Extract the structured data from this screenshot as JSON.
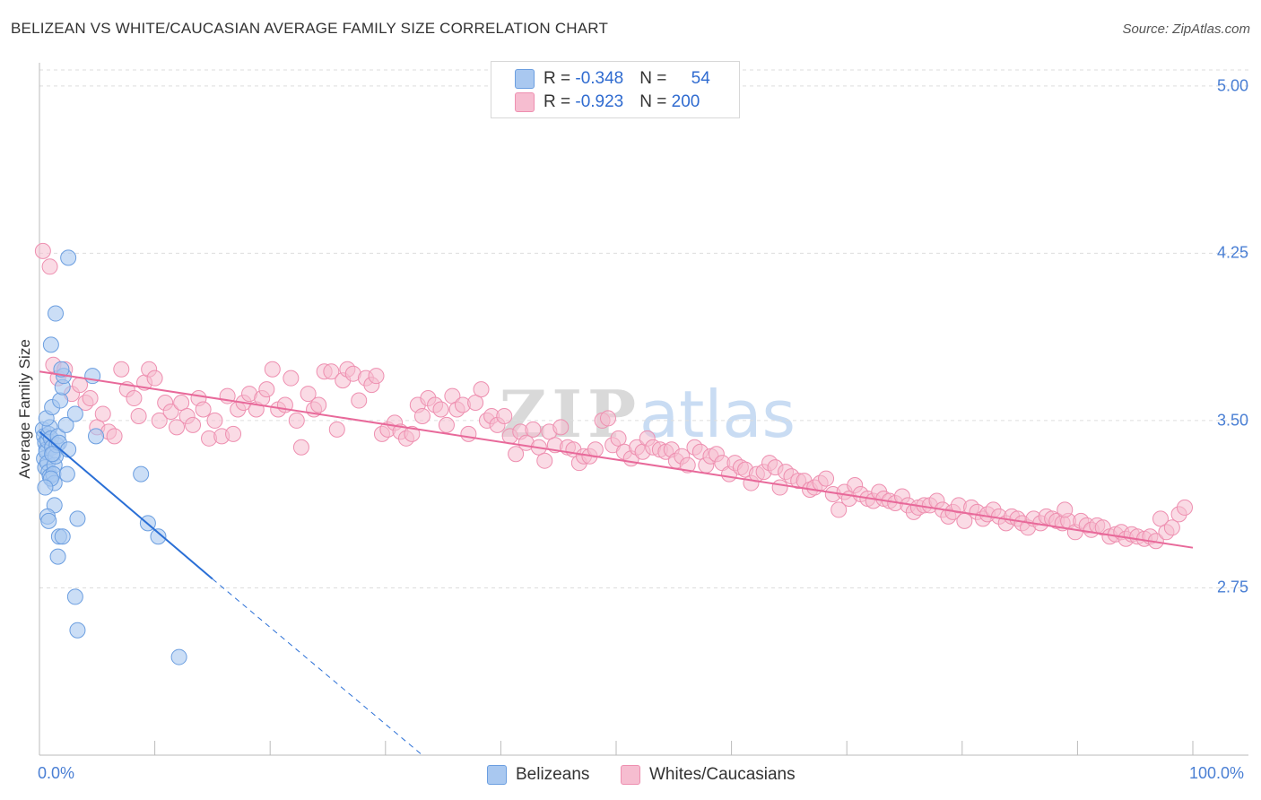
{
  "title": "BELIZEAN VS WHITE/CAUCASIAN AVERAGE FAMILY SIZE CORRELATION CHART",
  "source": "Source: ZipAtlas.com",
  "watermark": {
    "zip": "ZIP",
    "atlas": "atlas"
  },
  "legend": {
    "rows": [
      {
        "r_label": "R = ",
        "r_value": "-0.348",
        "n_label": "N = ",
        "n_value": "54"
      },
      {
        "r_label": "R = ",
        "r_value": "-0.923",
        "n_label": "N = ",
        "n_value": "200"
      }
    ]
  },
  "bottom_legend": {
    "series_a": "Belizeans",
    "series_b": "Whites/Caucasians"
  },
  "colors": {
    "blue_fill": "#a9c8f0",
    "blue_stroke": "#6b9ee0",
    "blue_line": "#2a6fd6",
    "pink_fill": "#f6bdd0",
    "pink_stroke": "#ee8fb0",
    "pink_line": "#e8699a",
    "grid": "#dddddd",
    "tick_text": "#4a7fd4"
  },
  "chart_data": {
    "type": "scatter",
    "title": "BELIZEAN VS WHITE/CAUCASIAN AVERAGE FAMILY SIZE CORRELATION CHART",
    "xlabel": "",
    "ylabel": "Average Family Size",
    "xlim": [
      0,
      100
    ],
    "ylim": [
      2.0,
      5.12
    ],
    "x_tick_labels": {
      "left": "0.0%",
      "right": "100.0%"
    },
    "y_ticks": [
      {
        "value": 5.0,
        "label": "5.00"
      },
      {
        "value": 4.25,
        "label": "4.25"
      },
      {
        "value": 3.5,
        "label": "3.50"
      },
      {
        "value": 2.75,
        "label": "2.75"
      }
    ],
    "series": [
      {
        "name": "Belizeans",
        "r": -0.348,
        "n": 54,
        "trend": {
          "x0": 0.0,
          "y0": 3.45,
          "x1": 15.0,
          "y1": 2.79,
          "dashed_to_x": 33.2,
          "dashed_to_y": 2.0
        },
        "points": [
          [
            0.3,
            3.46
          ],
          [
            0.4,
            3.43
          ],
          [
            0.5,
            3.4
          ],
          [
            0.6,
            3.37
          ],
          [
            0.4,
            3.33
          ],
          [
            0.5,
            3.29
          ],
          [
            0.6,
            3.36
          ],
          [
            0.7,
            3.41
          ],
          [
            0.8,
            3.44
          ],
          [
            0.9,
            3.47
          ],
          [
            1.0,
            3.42
          ],
          [
            1.1,
            3.38
          ],
          [
            1.2,
            3.35
          ],
          [
            0.7,
            3.31
          ],
          [
            0.8,
            3.27
          ],
          [
            0.9,
            3.25
          ],
          [
            1.3,
            3.3
          ],
          [
            1.4,
            3.34
          ],
          [
            1.5,
            3.39
          ],
          [
            1.6,
            3.43
          ],
          [
            1.7,
            3.4
          ],
          [
            1.2,
            3.26
          ],
          [
            1.3,
            3.22
          ],
          [
            1.0,
            3.24
          ],
          [
            0.6,
            3.51
          ],
          [
            1.1,
            3.56
          ],
          [
            1.8,
            3.59
          ],
          [
            2.0,
            3.65
          ],
          [
            2.1,
            3.7
          ],
          [
            1.9,
            3.73
          ],
          [
            2.3,
            3.48
          ],
          [
            2.5,
            3.37
          ],
          [
            2.4,
            3.26
          ],
          [
            1.3,
            3.12
          ],
          [
            0.7,
            3.07
          ],
          [
            0.8,
            3.05
          ],
          [
            3.1,
            3.53
          ],
          [
            3.3,
            3.06
          ],
          [
            4.6,
            3.7
          ],
          [
            4.9,
            3.43
          ],
          [
            1.4,
            3.98
          ],
          [
            1.0,
            3.84
          ],
          [
            2.5,
            4.23
          ],
          [
            1.7,
            2.98
          ],
          [
            2.0,
            2.98
          ],
          [
            1.6,
            2.89
          ],
          [
            3.1,
            2.71
          ],
          [
            3.3,
            2.56
          ],
          [
            8.8,
            3.26
          ],
          [
            9.4,
            3.04
          ],
          [
            10.3,
            2.98
          ],
          [
            12.1,
            2.44
          ],
          [
            1.1,
            3.35
          ],
          [
            0.5,
            3.2
          ]
        ]
      },
      {
        "name": "Whites/Caucasians",
        "r": -0.923,
        "n": 200,
        "trend": {
          "x0": 0.0,
          "y0": 3.72,
          "x1": 100.0,
          "y1": 2.93
        },
        "points": [
          [
            0.3,
            4.26
          ],
          [
            0.9,
            4.19
          ],
          [
            1.2,
            3.75
          ],
          [
            1.6,
            3.69
          ],
          [
            2.2,
            3.73
          ],
          [
            2.8,
            3.62
          ],
          [
            3.5,
            3.66
          ],
          [
            4.0,
            3.58
          ],
          [
            4.4,
            3.6
          ],
          [
            5.0,
            3.47
          ],
          [
            5.5,
            3.53
          ],
          [
            6.0,
            3.45
          ],
          [
            6.5,
            3.43
          ],
          [
            7.1,
            3.73
          ],
          [
            7.6,
            3.64
          ],
          [
            8.2,
            3.6
          ],
          [
            8.6,
            3.52
          ],
          [
            9.1,
            3.67
          ],
          [
            9.5,
            3.73
          ],
          [
            10.0,
            3.69
          ],
          [
            10.4,
            3.5
          ],
          [
            10.9,
            3.58
          ],
          [
            11.4,
            3.54
          ],
          [
            11.9,
            3.47
          ],
          [
            12.3,
            3.58
          ],
          [
            12.8,
            3.52
          ],
          [
            13.3,
            3.48
          ],
          [
            13.8,
            3.6
          ],
          [
            14.2,
            3.55
          ],
          [
            14.7,
            3.42
          ],
          [
            15.2,
            3.5
          ],
          [
            15.8,
            3.43
          ],
          [
            16.3,
            3.61
          ],
          [
            16.8,
            3.44
          ],
          [
            17.2,
            3.55
          ],
          [
            17.7,
            3.58
          ],
          [
            18.2,
            3.62
          ],
          [
            18.8,
            3.55
          ],
          [
            19.3,
            3.6
          ],
          [
            19.7,
            3.64
          ],
          [
            20.2,
            3.73
          ],
          [
            20.7,
            3.55
          ],
          [
            21.3,
            3.57
          ],
          [
            21.8,
            3.69
          ],
          [
            22.3,
            3.5
          ],
          [
            22.7,
            3.38
          ],
          [
            23.3,
            3.62
          ],
          [
            23.8,
            3.55
          ],
          [
            24.2,
            3.57
          ],
          [
            24.7,
            3.72
          ],
          [
            25.3,
            3.72
          ],
          [
            25.8,
            3.46
          ],
          [
            26.3,
            3.68
          ],
          [
            26.7,
            3.73
          ],
          [
            27.2,
            3.71
          ],
          [
            27.7,
            3.59
          ],
          [
            28.3,
            3.69
          ],
          [
            28.8,
            3.66
          ],
          [
            29.2,
            3.7
          ],
          [
            29.7,
            3.44
          ],
          [
            30.2,
            3.46
          ],
          [
            30.8,
            3.49
          ],
          [
            31.3,
            3.45
          ],
          [
            31.8,
            3.42
          ],
          [
            32.3,
            3.44
          ],
          [
            32.8,
            3.57
          ],
          [
            33.2,
            3.52
          ],
          [
            33.7,
            3.6
          ],
          [
            34.3,
            3.57
          ],
          [
            34.8,
            3.55
          ],
          [
            35.3,
            3.48
          ],
          [
            35.8,
            3.61
          ],
          [
            36.2,
            3.55
          ],
          [
            36.7,
            3.57
          ],
          [
            37.2,
            3.44
          ],
          [
            37.8,
            3.58
          ],
          [
            38.3,
            3.64
          ],
          [
            38.8,
            3.5
          ],
          [
            39.2,
            3.52
          ],
          [
            39.7,
            3.48
          ],
          [
            40.3,
            3.52
          ],
          [
            40.8,
            3.43
          ],
          [
            41.3,
            3.35
          ],
          [
            41.7,
            3.45
          ],
          [
            42.2,
            3.4
          ],
          [
            42.8,
            3.46
          ],
          [
            43.3,
            3.38
          ],
          [
            43.8,
            3.32
          ],
          [
            44.2,
            3.45
          ],
          [
            44.7,
            3.39
          ],
          [
            45.2,
            3.47
          ],
          [
            45.8,
            3.38
          ],
          [
            46.3,
            3.37
          ],
          [
            46.8,
            3.31
          ],
          [
            47.2,
            3.34
          ],
          [
            47.7,
            3.34
          ],
          [
            48.2,
            3.37
          ],
          [
            48.8,
            3.5
          ],
          [
            49.3,
            3.51
          ],
          [
            49.7,
            3.39
          ],
          [
            50.2,
            3.42
          ],
          [
            50.7,
            3.36
          ],
          [
            51.3,
            3.33
          ],
          [
            51.8,
            3.38
          ],
          [
            52.3,
            3.36
          ],
          [
            52.7,
            3.42
          ],
          [
            53.2,
            3.38
          ],
          [
            53.8,
            3.37
          ],
          [
            54.3,
            3.36
          ],
          [
            54.8,
            3.37
          ],
          [
            55.2,
            3.32
          ],
          [
            55.7,
            3.34
          ],
          [
            56.2,
            3.3
          ],
          [
            56.8,
            3.38
          ],
          [
            57.3,
            3.36
          ],
          [
            57.8,
            3.3
          ],
          [
            58.2,
            3.34
          ],
          [
            58.7,
            3.35
          ],
          [
            59.2,
            3.31
          ],
          [
            59.8,
            3.26
          ],
          [
            60.3,
            3.31
          ],
          [
            60.8,
            3.29
          ],
          [
            61.2,
            3.28
          ],
          [
            61.7,
            3.22
          ],
          [
            62.2,
            3.26
          ],
          [
            62.8,
            3.27
          ],
          [
            63.3,
            3.31
          ],
          [
            63.8,
            3.29
          ],
          [
            64.2,
            3.2
          ],
          [
            64.7,
            3.27
          ],
          [
            65.2,
            3.25
          ],
          [
            65.8,
            3.23
          ],
          [
            66.3,
            3.23
          ],
          [
            66.8,
            3.19
          ],
          [
            67.2,
            3.2
          ],
          [
            67.7,
            3.22
          ],
          [
            68.2,
            3.24
          ],
          [
            68.8,
            3.17
          ],
          [
            69.3,
            3.1
          ],
          [
            69.8,
            3.18
          ],
          [
            70.2,
            3.15
          ],
          [
            70.7,
            3.21
          ],
          [
            71.2,
            3.17
          ],
          [
            71.8,
            3.15
          ],
          [
            72.3,
            3.14
          ],
          [
            72.8,
            3.18
          ],
          [
            73.2,
            3.15
          ],
          [
            73.7,
            3.14
          ],
          [
            74.2,
            3.13
          ],
          [
            74.8,
            3.16
          ],
          [
            75.3,
            3.12
          ],
          [
            75.8,
            3.09
          ],
          [
            76.2,
            3.11
          ],
          [
            76.7,
            3.12
          ],
          [
            77.2,
            3.12
          ],
          [
            77.8,
            3.14
          ],
          [
            78.3,
            3.1
          ],
          [
            78.8,
            3.07
          ],
          [
            79.2,
            3.09
          ],
          [
            79.7,
            3.12
          ],
          [
            80.2,
            3.05
          ],
          [
            80.8,
            3.11
          ],
          [
            81.3,
            3.09
          ],
          [
            81.8,
            3.06
          ],
          [
            82.2,
            3.08
          ],
          [
            82.7,
            3.1
          ],
          [
            83.2,
            3.07
          ],
          [
            83.8,
            3.04
          ],
          [
            84.3,
            3.07
          ],
          [
            84.8,
            3.06
          ],
          [
            85.2,
            3.04
          ],
          [
            85.7,
            3.02
          ],
          [
            86.2,
            3.06
          ],
          [
            86.8,
            3.04
          ],
          [
            87.3,
            3.07
          ],
          [
            87.8,
            3.06
          ],
          [
            88.2,
            3.05
          ],
          [
            88.7,
            3.04
          ],
          [
            89.2,
            3.05
          ],
          [
            89.8,
            3.0
          ],
          [
            90.3,
            3.05
          ],
          [
            90.8,
            3.03
          ],
          [
            91.2,
            3.01
          ],
          [
            91.7,
            3.03
          ],
          [
            92.2,
            3.02
          ],
          [
            92.8,
            2.98
          ],
          [
            93.3,
            2.99
          ],
          [
            93.8,
            3.0
          ],
          [
            94.2,
            2.97
          ],
          [
            94.7,
            2.99
          ],
          [
            95.2,
            2.98
          ],
          [
            95.8,
            2.97
          ],
          [
            96.3,
            2.98
          ],
          [
            96.8,
            2.96
          ],
          [
            97.2,
            3.06
          ],
          [
            97.7,
            3.0
          ],
          [
            98.2,
            3.02
          ],
          [
            98.8,
            3.08
          ],
          [
            99.3,
            3.11
          ],
          [
            88.9,
            3.1
          ]
        ]
      }
    ]
  }
}
